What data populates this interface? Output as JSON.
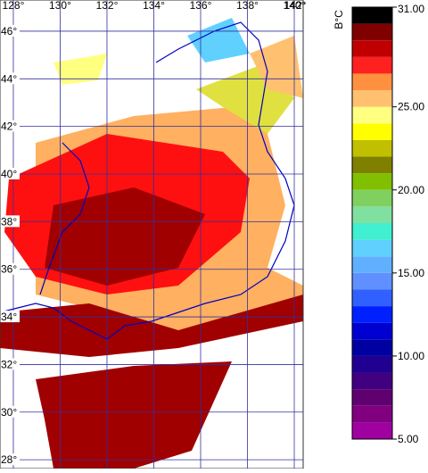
{
  "map": {
    "lonlim": [
      127.43,
      140.38
    ],
    "latlim": [
      27.63,
      47.31
    ],
    "lon_ticks": [
      {
        "value": 128,
        "label": "128°"
      },
      {
        "value": 130,
        "label": "130°"
      },
      {
        "value": 132,
        "label": "132°"
      },
      {
        "value": 134,
        "label": "134°"
      },
      {
        "value": 136,
        "label": "136°"
      },
      {
        "value": 138,
        "label": "138°"
      },
      {
        "value": 140,
        "label": "140°"
      },
      {
        "value": 142,
        "label": "142°"
      }
    ],
    "lat_ticks": [
      {
        "value": 46,
        "label": "46°"
      },
      {
        "value": 44,
        "label": "44°"
      },
      {
        "value": 42,
        "label": "42°"
      },
      {
        "value": 40,
        "label": "40°"
      },
      {
        "value": 38,
        "label": "38°"
      },
      {
        "value": 36,
        "label": "36°"
      },
      {
        "value": 34,
        "label": "34°"
      },
      {
        "value": 32,
        "label": "32°"
      },
      {
        "value": 30,
        "label": "30°"
      },
      {
        "value": 28,
        "label": "28°"
      }
    ]
  },
  "colorbar": {
    "unit": "B°C",
    "lim": [
      5,
      31
    ],
    "ticks": [
      {
        "value": 31,
        "label": "31.00"
      },
      {
        "value": 25,
        "label": "25.00"
      },
      {
        "value": 20,
        "label": "20.00"
      },
      {
        "value": 15,
        "label": "15.00"
      },
      {
        "value": 10,
        "label": "10.00"
      },
      {
        "value": 5,
        "label": "5.00"
      }
    ],
    "colors": [
      "#a000a0",
      "#800080",
      "#600070",
      "#400080",
      "#200090",
      "#0000a0",
      "#0000d0",
      "#0020ff",
      "#3060ff",
      "#6090ff",
      "#60b0ff",
      "#60d0ff",
      "#40f0d0",
      "#80e0a0",
      "#80d060",
      "#80c000",
      "#808000",
      "#c0c000",
      "#ffff00",
      "#ffff80",
      "#ffc070",
      "#ff9040",
      "#ff2020",
      "#c00000",
      "#800000",
      "#000000"
    ]
  }
}
